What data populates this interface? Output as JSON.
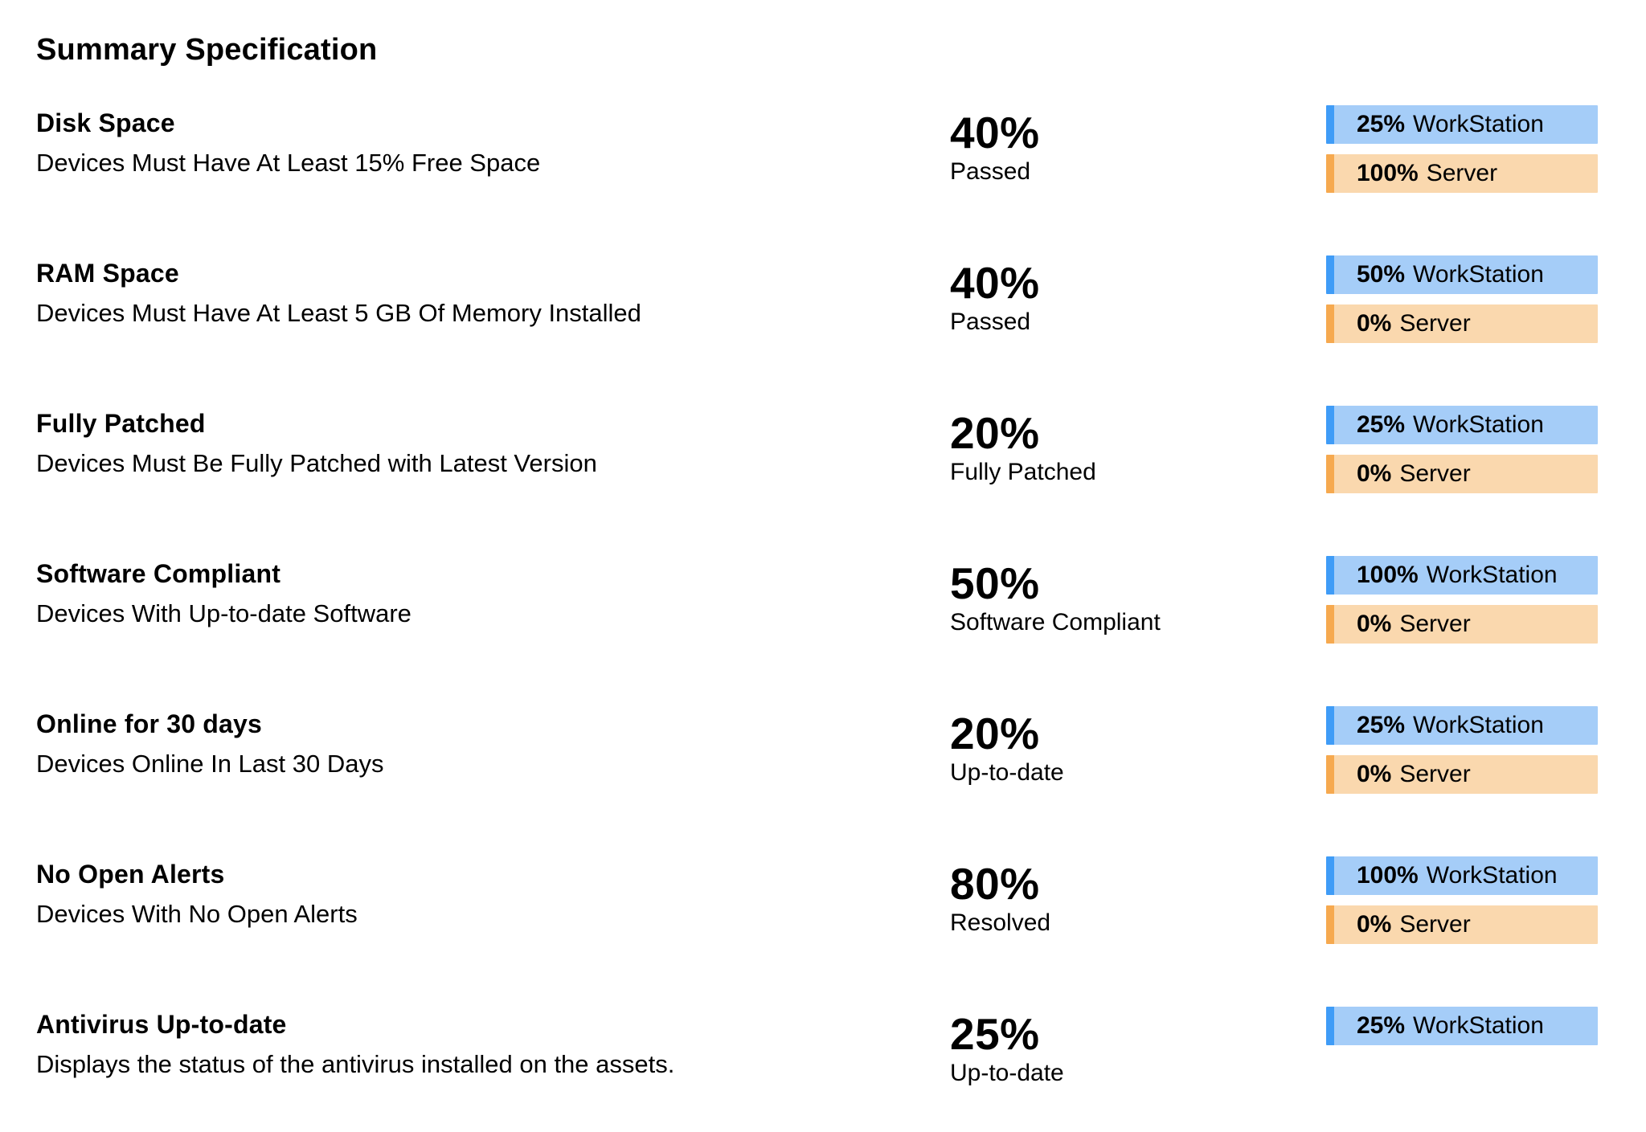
{
  "page": {
    "title": "Summary Specification"
  },
  "colors": {
    "workstation_accent": "#3f9cf7",
    "workstation_bg": "#a5cdf8",
    "server_accent": "#f6a94f",
    "server_bg": "#fad8ae",
    "text": "#000000"
  },
  "badge_labels": {
    "workstation": "WorkStation",
    "server": "Server"
  },
  "rows": [
    {
      "name": "Disk Space",
      "description": "Devices Must Have At Least 15% Free Space",
      "percent": "40%",
      "percent_label": "Passed",
      "workstation": "25%",
      "server": "100%"
    },
    {
      "name": "RAM Space",
      "description": "Devices Must Have At Least 5 GB Of Memory Installed",
      "percent": "40%",
      "percent_label": "Passed",
      "workstation": "50%",
      "server": "0%"
    },
    {
      "name": "Fully Patched",
      "description": "Devices Must Be Fully Patched with Latest Version",
      "percent": "20%",
      "percent_label": "Fully Patched",
      "workstation": "25%",
      "server": "0%"
    },
    {
      "name": "Software Compliant",
      "description": "Devices With Up-to-date Software",
      "percent": "50%",
      "percent_label": "Software Compliant",
      "workstation": "100%",
      "server": "0%"
    },
    {
      "name": "Online for 30 days",
      "description": "Devices Online In Last 30 Days",
      "percent": "20%",
      "percent_label": "Up-to-date",
      "workstation": "25%",
      "server": "0%"
    },
    {
      "name": "No Open Alerts",
      "description": "Devices With No Open Alerts",
      "percent": "80%",
      "percent_label": "Resolved",
      "workstation": "100%",
      "server": "0%"
    },
    {
      "name": "Antivirus Up-to-date",
      "description": "Displays the status of the antivirus installed on the assets.",
      "percent": "25%",
      "percent_label": "Up-to-date",
      "workstation": "25%",
      "server": null
    }
  ]
}
